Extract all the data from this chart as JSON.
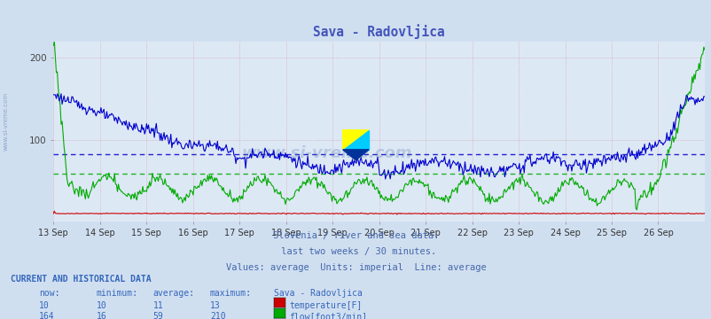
{
  "title": "Sava - Radovljica",
  "title_color": "#4455bb",
  "bg_color": "#d0dff0",
  "plot_bg_color": "#dde8f5",
  "grid_color": "#cc6666",
  "avg_line_blue": 82,
  "avg_line_green": 59,
  "xlabel_dates": [
    "13 Sep",
    "14 Sep",
    "15 Sep",
    "16 Sep",
    "17 Sep",
    "18 Sep",
    "19 Sep",
    "20 Sep",
    "21 Sep",
    "22 Sep",
    "23 Sep",
    "24 Sep",
    "25 Sep",
    "26 Sep"
  ],
  "ylim": [
    0,
    220
  ],
  "yticks": [
    100,
    200
  ],
  "footer_lines": [
    "Slovenia / river and sea data.",
    " last two weeks / 30 minutes.",
    "Values: average  Units: imperial  Line: average"
  ],
  "footer_color": "#4466aa",
  "table_title": "CURRENT AND HISTORICAL DATA",
  "table_color": "#3366bb",
  "temp_color": "#cc0000",
  "flow_color": "#00aa00",
  "height_color": "#0000cc",
  "watermark": "www.si-vreme.com",
  "n_days": 14,
  "pts_per_day": 48
}
